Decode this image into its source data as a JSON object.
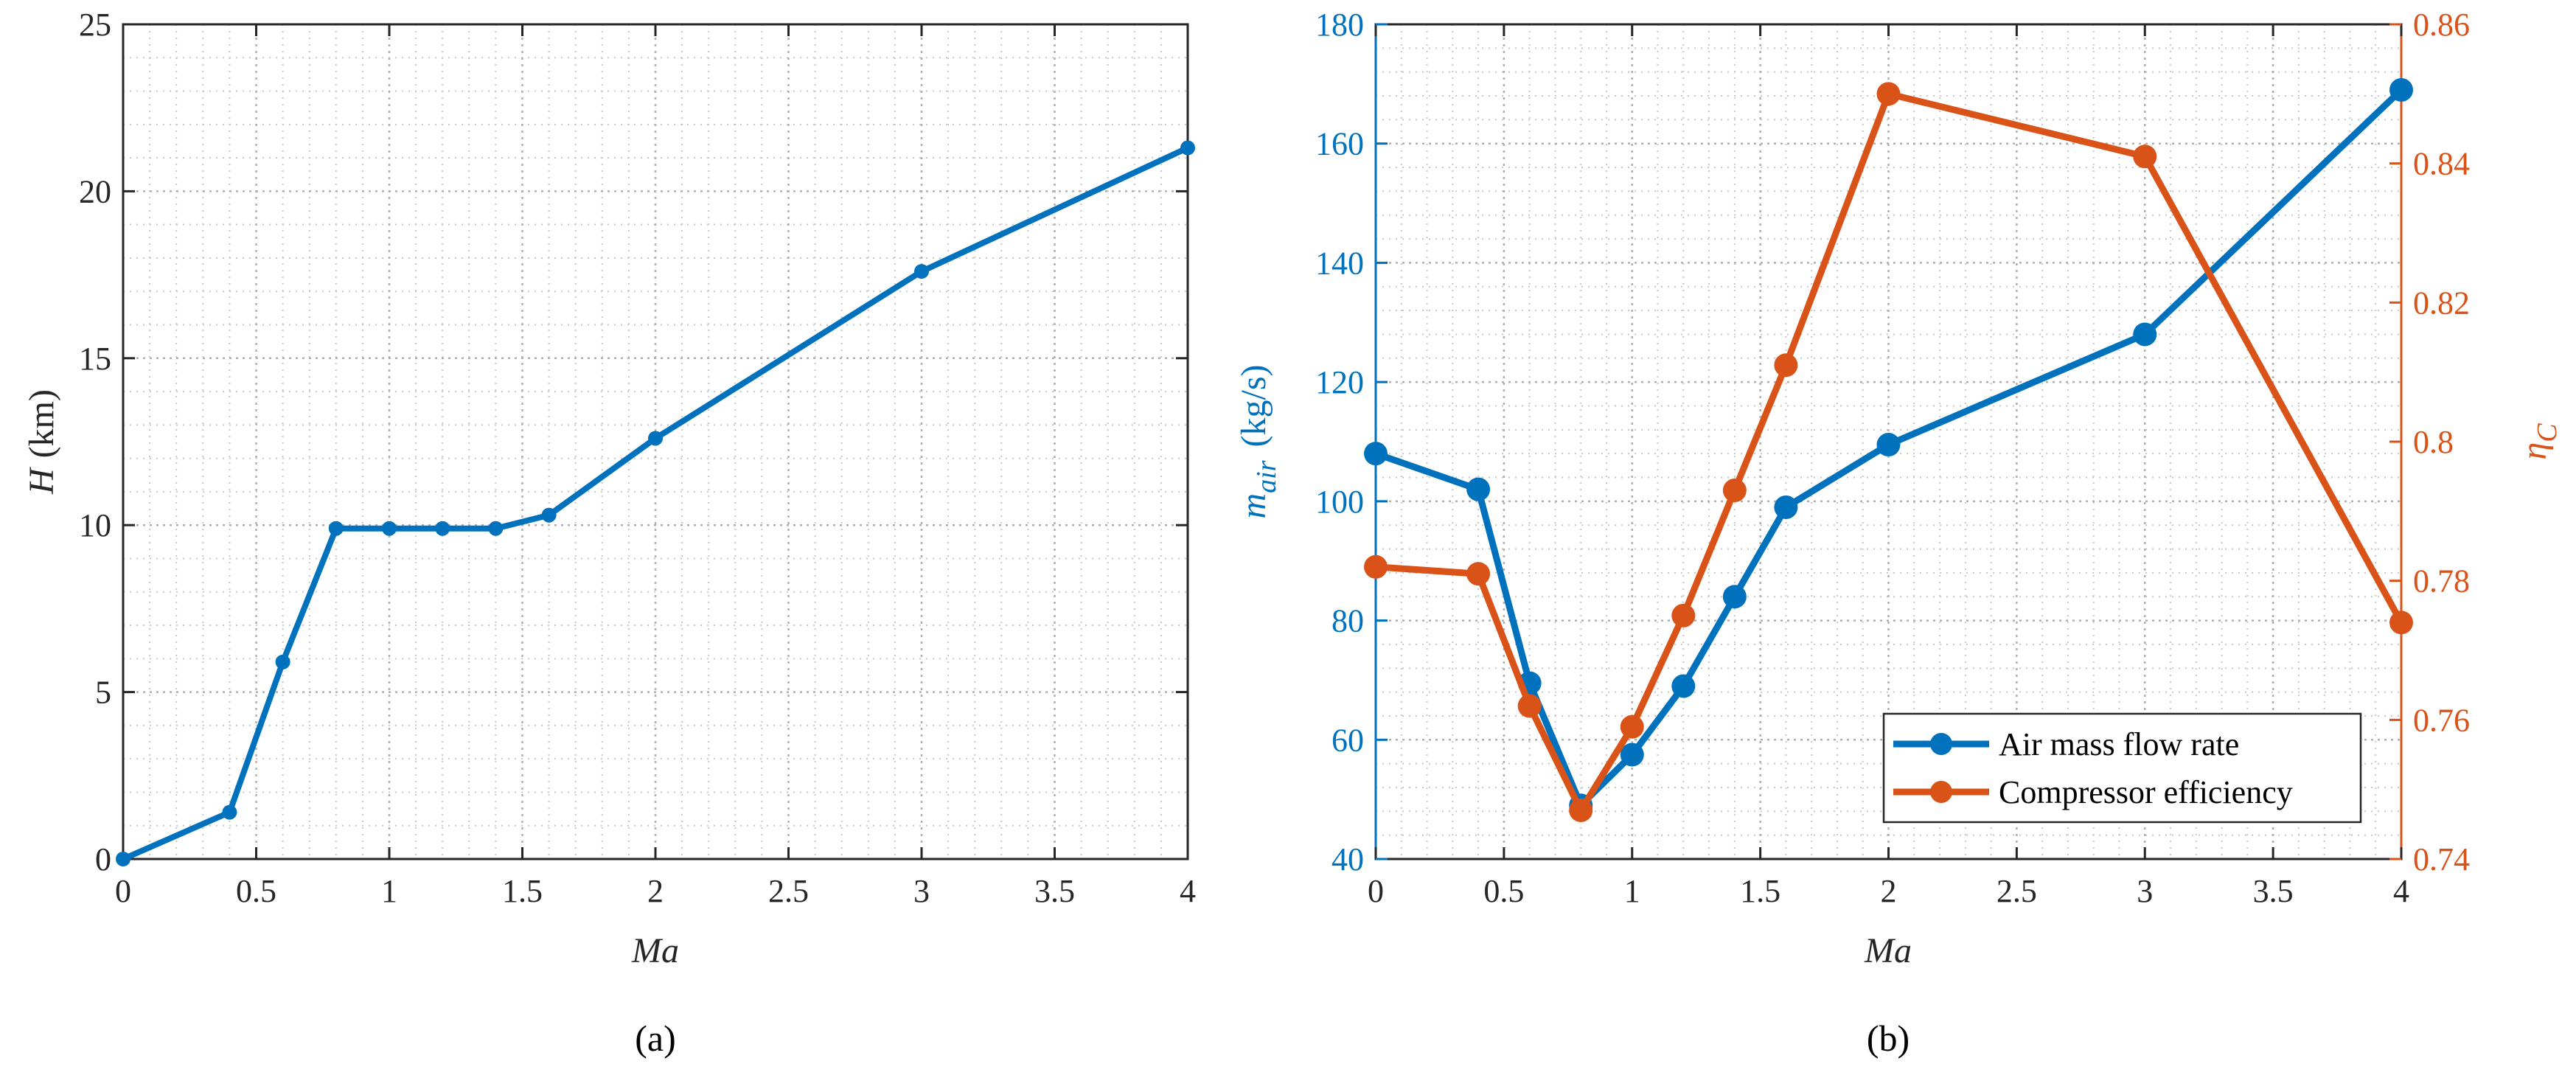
{
  "chart_data": [
    {
      "type": "line",
      "caption": "(a)",
      "xlabel": "Ma",
      "ylabel_var": "H",
      "ylabel_unit": "(km)",
      "xlim": [
        0,
        4
      ],
      "ylim": [
        0,
        25
      ],
      "xticks": [
        0,
        0.5,
        1,
        1.5,
        2,
        2.5,
        3,
        3.5,
        4
      ],
      "yticks": [
        0,
        5,
        10,
        15,
        20,
        25
      ],
      "grid": true,
      "series": [
        {
          "color": "#0072BD",
          "x": [
            0,
            0.4,
            0.6,
            0.8,
            1.0,
            1.2,
            1.4,
            1.6,
            2.0,
            3.0,
            4.0
          ],
          "values": [
            0,
            1.4,
            5.9,
            9.9,
            9.9,
            9.9,
            9.9,
            10.3,
            12.6,
            17.6,
            21.3
          ]
        }
      ]
    },
    {
      "type": "line",
      "caption": "(b)",
      "xlabel": "Ma",
      "ylabel_left_var": "m",
      "ylabel_left_sub": "air",
      "ylabel_left_unit": "(kg/s)",
      "ylabel_right_var": "η",
      "ylabel_right_sub": "C",
      "xlim": [
        0,
        4
      ],
      "ylim_left": [
        40,
        180
      ],
      "ylim_right": [
        0.74,
        0.86
      ],
      "xticks": [
        0,
        0.5,
        1,
        1.5,
        2,
        2.5,
        3,
        3.5,
        4
      ],
      "yticks_left": [
        40,
        60,
        80,
        100,
        120,
        140,
        160,
        180
      ],
      "yticks_right": [
        0.74,
        0.76,
        0.78,
        0.8,
        0.82,
        0.84,
        0.86
      ],
      "yticks_right_labels": [
        "0.74",
        "0.76",
        "0.78",
        "0.8",
        "0.82",
        "0.84",
        "0.86"
      ],
      "grid": true,
      "legend_position": "bottom-right",
      "series": [
        {
          "name": "Air mass flow rate",
          "axis": "left",
          "color": "#0072BD",
          "x": [
            0,
            0.4,
            0.6,
            0.8,
            1.0,
            1.2,
            1.4,
            1.6,
            2.0,
            3.0,
            4.0
          ],
          "values": [
            108,
            102,
            69.5,
            49,
            57.5,
            69,
            84,
            99,
            109.5,
            128,
            169
          ]
        },
        {
          "name": "Compressor efficiency",
          "axis": "right",
          "color": "#D95319",
          "x": [
            0,
            0.4,
            0.6,
            0.8,
            1.0,
            1.2,
            1.4,
            1.6,
            2.0,
            3.0,
            4.0
          ],
          "values": [
            0.782,
            0.781,
            0.762,
            0.747,
            0.759,
            0.775,
            0.793,
            0.811,
            0.85,
            0.841,
            0.774
          ]
        }
      ]
    }
  ]
}
